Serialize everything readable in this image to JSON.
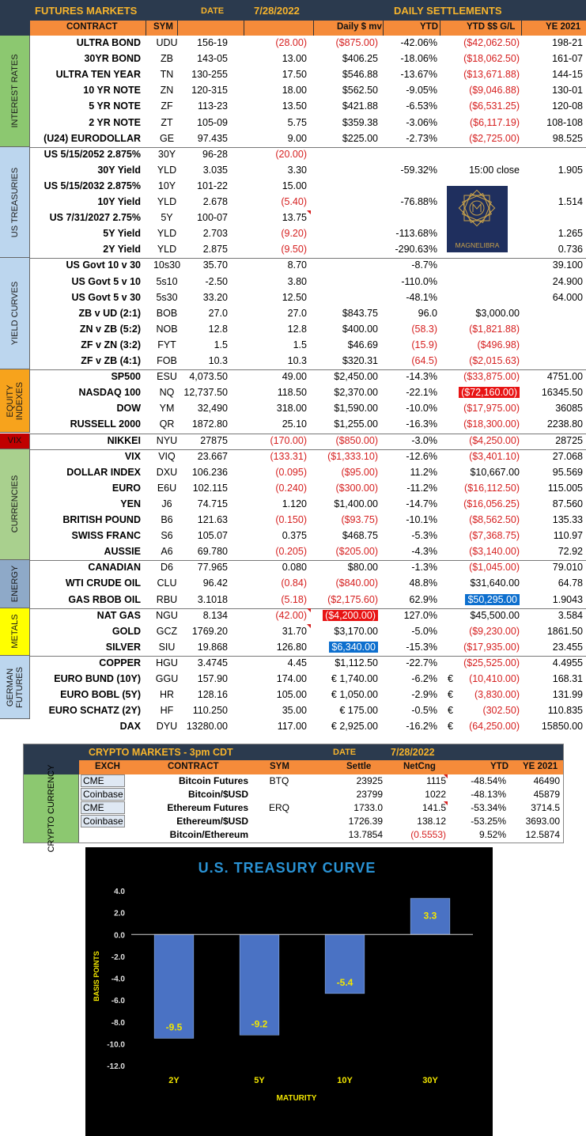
{
  "futures": {
    "title": "FUTURES MARKETS",
    "date_label": "DATE",
    "date": "7/28/2022",
    "settlements_label": "DAILY SETTLEMENTS",
    "columns": {
      "contract": "CONTRACT",
      "sym": "SYM",
      "daily_mv": "Daily $ mv",
      "ytd": "YTD",
      "ytd_gl": "YTD $$ G/L",
      "ye": "YE 2021"
    },
    "groups": [
      {
        "label": "INTEREST RATES",
        "color": "#8cc870",
        "rows": 7
      },
      {
        "label": "US TREASURIES",
        "color": "#bcd6ee",
        "rows": 7
      },
      {
        "label": "YIELD CURVES",
        "color": "#bcd6ee",
        "rows": 7
      },
      {
        "label": "EQUITY INDEXES",
        "color": "#f7a31c",
        "rows": 4
      },
      {
        "label": "VIX",
        "color": "#c00000",
        "rows": 1
      },
      {
        "label": "CURRENCIES",
        "color": "#a9d08e",
        "rows": 7
      },
      {
        "label": "ENERGY",
        "color": "#8ea9c8",
        "rows": 3
      },
      {
        "label": "METALS",
        "color": "#ffff00",
        "rows": 3
      },
      {
        "label": "GERMAN FUTURES",
        "color": "#bcd6ee",
        "rows": 4
      }
    ],
    "rows": [
      {
        "name": "ULTRA BOND",
        "sym": "UDU",
        "settle": "156-19",
        "chg": "(28.00)",
        "dmv": "($875.00)",
        "ytd": "-42.06%",
        "gl": "($42,062.50)",
        "ye": "198-21"
      },
      {
        "name": "30YR BOND",
        "sym": "ZB",
        "settle": "143-05",
        "chg": "13.00",
        "dmv": "$406.25",
        "ytd": "-18.06%",
        "gl": "($18,062.50)",
        "ye": "161-07"
      },
      {
        "name": "ULTRA TEN YEAR",
        "sym": "TN",
        "settle": "130-255",
        "chg": "17.50",
        "dmv": "$546.88",
        "ytd": "-13.67%",
        "gl": "($13,671.88)",
        "ye": "144-15"
      },
      {
        "name": "10 YR NOTE",
        "sym": "ZN",
        "settle": "120-315",
        "chg": "18.00",
        "dmv": "$562.50",
        "ytd": "-9.05%",
        "gl": "($9,046.88)",
        "ye": "130-01"
      },
      {
        "name": "5 YR NOTE",
        "sym": "ZF",
        "settle": "113-23",
        "chg": "13.50",
        "dmv": "$421.88",
        "ytd": "-6.53%",
        "gl": "($6,531.25)",
        "ye": "120-08"
      },
      {
        "name": "2 YR NOTE",
        "sym": "ZT",
        "settle": "105-09",
        "chg": "5.75",
        "dmv": "$359.38",
        "ytd": "-3.06%",
        "gl": "($6,117.19)",
        "ye": "108-108"
      },
      {
        "name": "(U24) EURODOLLAR",
        "sym": "GE",
        "settle": "97.435",
        "chg": "9.00",
        "dmv": "$225.00",
        "ytd": "-2.73%",
        "gl": "($2,725.00)",
        "ye": "98.525"
      },
      {
        "name": "US 5/15/2052 2.875%",
        "sym": "30Y",
        "settle": "96-28",
        "chg": "(20.00)",
        "dmv": "",
        "ytd": "",
        "gl": "",
        "ye": ""
      },
      {
        "name": "30Y Yield",
        "sym": "YLD",
        "settle": "3.035",
        "chg": "3.30",
        "dmv": "",
        "ytd": "-59.32%",
        "gl": "15:00 close",
        "ye": "1.905"
      },
      {
        "name": "US 5/15/2032 2.875%",
        "sym": "10Y",
        "settle": "101-22",
        "chg": "15.00",
        "dmv": "",
        "ytd": "",
        "gl": "",
        "ye": ""
      },
      {
        "name": "10Y Yield",
        "sym": "YLD",
        "settle": "2.678",
        "chg": "(5.40)",
        "dmv": "",
        "ytd": "-76.88%",
        "gl": "",
        "ye": "1.514"
      },
      {
        "name": "US 7/31/2027 2.75%",
        "sym": "5Y",
        "settle": "100-07",
        "chg": "13.75",
        "dmv": "",
        "ytd": "",
        "gl": "",
        "ye": "",
        "chg_flag": true
      },
      {
        "name": "5Y Yield",
        "sym": "YLD",
        "settle": "2.703",
        "chg": "(9.20)",
        "dmv": "",
        "ytd": "-113.68%",
        "gl": "",
        "ye": "1.265"
      },
      {
        "name": "2Y Yield",
        "sym": "YLD",
        "settle": "2.875",
        "chg": "(9.50)",
        "dmv": "",
        "ytd": "-290.63%",
        "gl": "",
        "ye": "0.736"
      },
      {
        "name": "US Govt 10 v 30",
        "sym": "10s30",
        "settle": "35.70",
        "chg": "8.70",
        "dmv": "",
        "ytd": "-8.7%",
        "gl": "",
        "ye": "39.100"
      },
      {
        "name": "US Govt 5 v 10",
        "sym": "5s10",
        "settle": "-2.50",
        "chg": "3.80",
        "dmv": "",
        "ytd": "-110.0%",
        "gl": "",
        "ye": "24.900"
      },
      {
        "name": "US Govt 5 v 30",
        "sym": "5s30",
        "settle": "33.20",
        "chg": "12.50",
        "dmv": "",
        "ytd": "-48.1%",
        "gl": "",
        "ye": "64.000"
      },
      {
        "name": "ZB v UD (2:1)",
        "sym": "BOB",
        "settle": "27.0",
        "chg": "27.0",
        "dmv": "$843.75",
        "ytd": "96.0",
        "gl": "$3,000.00",
        "ye": ""
      },
      {
        "name": "ZN v ZB (5:2)",
        "sym": "NOB",
        "settle": "12.8",
        "chg": "12.8",
        "dmv": "$400.00",
        "ytd": "(58.3)",
        "gl": "($1,821.88)",
        "ye": ""
      },
      {
        "name": "ZF v ZN (3:2)",
        "sym": "FYT",
        "settle": "1.5",
        "chg": "1.5",
        "dmv": "$46.69",
        "ytd": "(15.9)",
        "gl": "($496.98)",
        "ye": ""
      },
      {
        "name": "ZF v ZB (4:1)",
        "sym": "FOB",
        "settle": "10.3",
        "chg": "10.3",
        "dmv": "$320.31",
        "ytd": "(64.5)",
        "gl": "($2,015.63)",
        "ye": ""
      },
      {
        "name": "SP500",
        "sym": "ESU",
        "settle": "4,073.50",
        "chg": "49.00",
        "dmv": "$2,450.00",
        "ytd": "-14.3%",
        "gl": "($33,875.00)",
        "ye": "4751.00"
      },
      {
        "name": "NASDAQ 100",
        "sym": "NQ",
        "settle": "12,737.50",
        "chg": "118.50",
        "dmv": "$2,370.00",
        "ytd": "-22.1%",
        "gl": "($72,160.00)",
        "ye": "16345.50",
        "gl_hl": "red"
      },
      {
        "name": "DOW",
        "sym": "YM",
        "settle": "32,490",
        "chg": "318.00",
        "dmv": "$1,590.00",
        "ytd": "-10.0%",
        "gl": "($17,975.00)",
        "ye": "36085"
      },
      {
        "name": "RUSSELL 2000",
        "sym": "QR",
        "settle": "1872.80",
        "chg": "25.10",
        "dmv": "$1,255.00",
        "ytd": "-16.3%",
        "gl": "($18,300.00)",
        "ye": "2238.80"
      },
      {
        "name": "NIKKEI",
        "sym": "NYU",
        "settle": "27875",
        "chg": "(170.00)",
        "dmv": "($850.00)",
        "ytd": "-3.0%",
        "gl": "($4,250.00)",
        "ye": "28725"
      },
      {
        "name": "VIX",
        "sym": "VIQ",
        "settle": "23.667",
        "chg": "(133.31)",
        "dmv": "($1,333.10)",
        "ytd": "-12.6%",
        "gl": "($3,401.10)",
        "ye": "27.068"
      },
      {
        "name": "DOLLAR INDEX",
        "sym": "DXU",
        "settle": "106.236",
        "chg": "(0.095)",
        "dmv": "($95.00)",
        "ytd": "11.2%",
        "gl": "$10,667.00",
        "ye": "95.569"
      },
      {
        "name": "EURO",
        "sym": "E6U",
        "settle": "102.115",
        "chg": "(0.240)",
        "dmv": "($300.00)",
        "ytd": "-11.2%",
        "gl": "($16,112.50)",
        "ye": "115.005"
      },
      {
        "name": "YEN",
        "sym": "J6",
        "settle": "74.715",
        "chg": "1.120",
        "dmv": "$1,400.00",
        "ytd": "-14.7%",
        "gl": "($16,056.25)",
        "ye": "87.560"
      },
      {
        "name": "BRITISH POUND",
        "sym": "B6",
        "settle": "121.63",
        "chg": "(0.150)",
        "dmv": "($93.75)",
        "ytd": "-10.1%",
        "gl": "($8,562.50)",
        "ye": "135.33"
      },
      {
        "name": "SWISS FRANC",
        "sym": "S6",
        "settle": "105.07",
        "chg": "0.375",
        "dmv": "$468.75",
        "ytd": "-5.3%",
        "gl": "($7,368.75)",
        "ye": "110.97"
      },
      {
        "name": "AUSSIE",
        "sym": "A6",
        "settle": "69.780",
        "chg": "(0.205)",
        "dmv": "($205.00)",
        "ytd": "-4.3%",
        "gl": "($3,140.00)",
        "ye": "72.92"
      },
      {
        "name": "CANADIAN",
        "sym": "D6",
        "settle": "77.965",
        "chg": "0.080",
        "dmv": "$80.00",
        "ytd": "-1.3%",
        "gl": "($1,045.00)",
        "ye": "79.010"
      },
      {
        "name": "WTI CRUDE OIL",
        "sym": "CLU",
        "settle": "96.42",
        "chg": "(0.84)",
        "dmv": "($840.00)",
        "ytd": "48.8%",
        "gl": "$31,640.00",
        "ye": "64.78"
      },
      {
        "name": "GAS RBOB OIL",
        "sym": "RBU",
        "settle": "3.1018",
        "chg": "(5.18)",
        "dmv": "($2,175.60)",
        "ytd": "62.9%",
        "gl": "$50,295.00",
        "ye": "1.9043",
        "gl_hl": "blue"
      },
      {
        "name": "NAT GAS",
        "sym": "NGU",
        "settle": "8.134",
        "chg": "(42.00)",
        "dmv": "($4,200.00)",
        "ytd": "127.0%",
        "gl": "$45,500.00",
        "ye": "3.584",
        "dmv_hl": "red",
        "chg_flag": true
      },
      {
        "name": "GOLD",
        "sym": "GCZ",
        "settle": "1769.20",
        "chg": "31.70",
        "dmv": "$3,170.00",
        "ytd": "-5.0%",
        "gl": "($9,230.00)",
        "ye": "1861.50",
        "chg_flag": true
      },
      {
        "name": "SILVER",
        "sym": "SIU",
        "settle": "19.868",
        "chg": "126.80",
        "dmv": "$6,340.00",
        "ytd": "-15.3%",
        "gl": "($17,935.00)",
        "ye": "23.455",
        "dmv_hl": "blue"
      },
      {
        "name": "COPPER",
        "sym": "HGU",
        "settle": "3.4745",
        "chg": "4.45",
        "dmv": "$1,112.50",
        "ytd": "-22.7%",
        "gl": "($25,525.00)",
        "ye": "4.4955"
      },
      {
        "name": "EURO BUND (10Y)",
        "sym": "GGU",
        "settle": "157.90",
        "chg": "174.00",
        "dmv": "€ 1,740.00",
        "ytd": "-6.2%",
        "eur": "€",
        "gl": "(10,410.00)",
        "ye": "168.31"
      },
      {
        "name": "EURO BOBL (5Y)",
        "sym": "HR",
        "settle": "128.16",
        "chg": "105.00",
        "dmv": "€ 1,050.00",
        "ytd": "-2.9%",
        "eur": "€",
        "gl": "(3,830.00)",
        "ye": "131.99"
      },
      {
        "name": "EURO SCHATZ (2Y)",
        "sym": "HF",
        "settle": "110.250",
        "chg": "35.00",
        "dmv": "€ 175.00",
        "ytd": "-0.5%",
        "eur": "€",
        "gl": "(302.50)",
        "ye": "110.835"
      },
      {
        "name": "DAX",
        "sym": "DYU",
        "settle": "13280.00",
        "chg": "117.00",
        "dmv": "€ 2,925.00",
        "ytd": "-16.2%",
        "eur": "€",
        "gl": "(64,250.00)",
        "ye": "15850.00"
      }
    ]
  },
  "logo": {
    "text": "MAGNELIBRA"
  },
  "crypto": {
    "title": "CRYPTO MARKETS - 3pm CDT",
    "date_label": "DATE",
    "date": "7/28/2022",
    "group_label": "CRYPTO CURRENCY",
    "columns": {
      "exch": "EXCH",
      "contract": "CONTRACT",
      "sym": "SYM",
      "settle": "Settle",
      "net": "NetCng",
      "ytd": "YTD",
      "ye": "YE 2021"
    },
    "rows": [
      {
        "exch": "CME",
        "contract": "Bitcoin Futures",
        "sym": "BTQ",
        "settle": "23925",
        "net": "1115",
        "ytd": "-48.54%",
        "ye": "46490",
        "flag": true
      },
      {
        "exch": "Coinbase",
        "contract": "Bitcoin/$USD",
        "sym": "",
        "settle": "23799",
        "net": "1022",
        "ytd": "-48.13%",
        "ye": "45879"
      },
      {
        "exch": "CME",
        "contract": "Ethereum Futures",
        "sym": "ERQ",
        "settle": "1733.0",
        "net": "141.5",
        "ytd": "-53.34%",
        "ye": "3714.5",
        "flag": true
      },
      {
        "exch": "Coinbase",
        "contract": "Ethereum/$USD",
        "sym": "",
        "settle": "1726.39",
        "net": "138.12",
        "ytd": "-53.25%",
        "ye": "3693.00"
      },
      {
        "exch": "",
        "contract": "Bitcoin/Ethereum",
        "sym": "",
        "settle": "13.7854",
        "net": "(0.5553)",
        "ytd": "9.52%",
        "ye": "12.5874"
      }
    ]
  },
  "chart_data": {
    "type": "bar",
    "title": "U.S. TREASURY CURVE",
    "xlabel": "MATURITY",
    "ylabel": "BASIS POINTS",
    "categories": [
      "2Y",
      "5Y",
      "10Y",
      "30Y"
    ],
    "values": [
      -9.5,
      -9.2,
      -5.4,
      3.3
    ],
    "data_labels": [
      "-9.5",
      "-9.2",
      "-5.4",
      "3.3"
    ],
    "ylim": [
      -12.0,
      4.0
    ],
    "yticks": [
      "4.0",
      "2.0",
      "0.0",
      "-2.0",
      "-4.0",
      "-6.0",
      "-8.0",
      "-10.0",
      "-12.0"
    ],
    "grid": false,
    "colors": {
      "background": "#000000",
      "bar": "#4a72c4",
      "title": "#2a93d5",
      "data_label": "#f2e600",
      "axis_label": "#f2e600",
      "tick": "#e0e0e0"
    }
  }
}
